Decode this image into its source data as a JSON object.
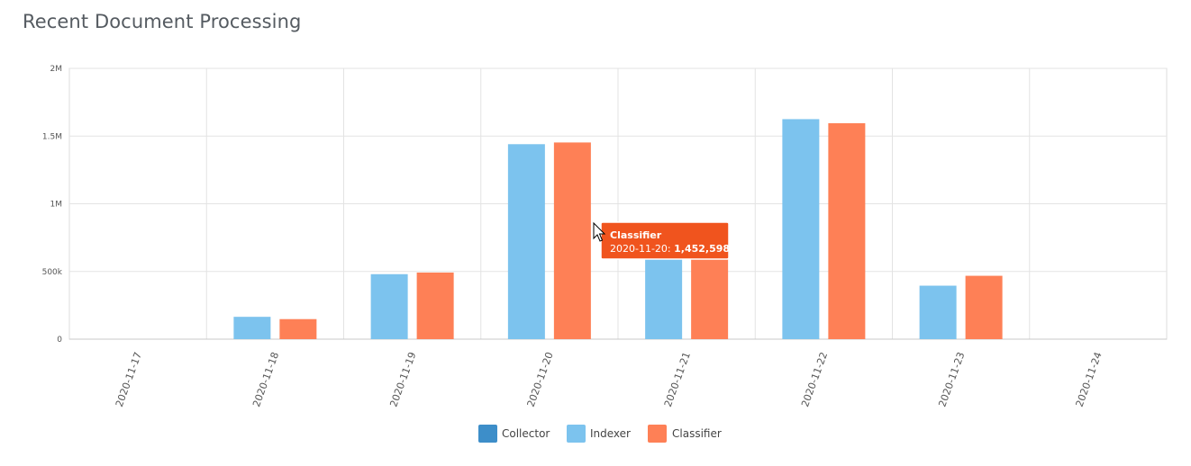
{
  "page": {
    "title": "Recent Document Processing"
  },
  "chart_data": {
    "type": "bar",
    "title": "Recent Document Processing",
    "categories": [
      "2020-11-17",
      "2020-11-18",
      "2020-11-19",
      "2020-11-20",
      "2020-11-21",
      "2020-11-22",
      "2020-11-23",
      "2020-11-24"
    ],
    "series": [
      {
        "name": "Collector",
        "color": "#3d8ec9",
        "values": [
          0,
          0,
          0,
          0,
          0,
          0,
          0,
          0
        ]
      },
      {
        "name": "Indexer",
        "color": "#7cc3ee",
        "values": [
          0,
          165000,
          480000,
          1440000,
          740000,
          1625000,
          395000,
          0
        ]
      },
      {
        "name": "Classifier",
        "color": "#fe8056",
        "values": [
          0,
          148000,
          492000,
          1452598,
          755000,
          1595000,
          468000,
          0
        ]
      }
    ],
    "ylim": [
      0,
      2000000
    ],
    "yticks": [
      {
        "value": 0,
        "label": "0"
      },
      {
        "value": 500000,
        "label": "500k"
      },
      {
        "value": 1000000,
        "label": "1M"
      },
      {
        "value": 1500000,
        "label": "1.5M"
      },
      {
        "value": 2000000,
        "label": "2M"
      }
    ],
    "grid": true,
    "legend_position": "bottom-center",
    "tooltip": {
      "series": "Classifier",
      "category": "2020-11-20",
      "label": "2020-11-20: ",
      "value_text": "1,452,598",
      "color": "#f0541e"
    }
  }
}
